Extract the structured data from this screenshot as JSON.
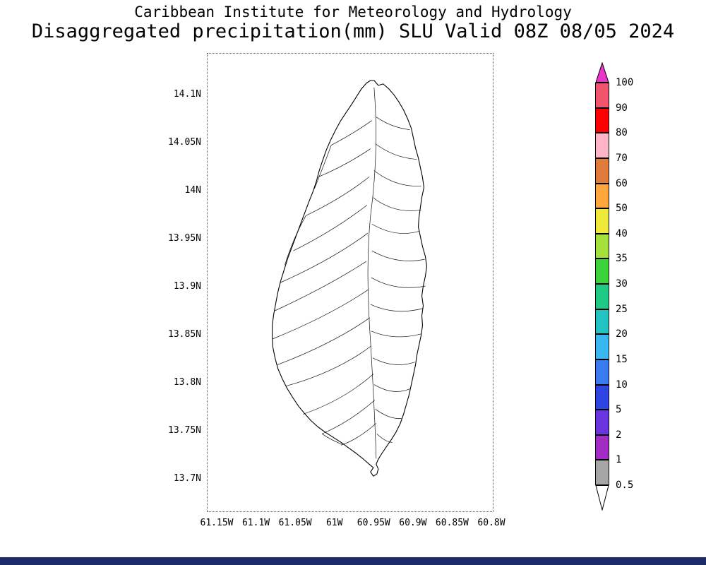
{
  "title": {
    "line1": "Caribbean Institute for Meteorology and Hydrology",
    "line2": "Disaggregated precipitation(mm) SLU Valid 08Z 08/05 2024"
  },
  "map": {
    "y_axis_labels": [
      "14.1N",
      "14.05N",
      "14N",
      "13.95N",
      "13.9N",
      "13.85N",
      "13.8N",
      "13.75N",
      "13.7N"
    ],
    "x_axis_labels": [
      "61.15W",
      "61.1W",
      "61.05W",
      "61W",
      "60.95W",
      "60.9W",
      "60.85W",
      "60.8W"
    ]
  },
  "legend": {
    "unit": "mm",
    "boundary_labels": [
      "100",
      "90",
      "80",
      "70",
      "60",
      "50",
      "40",
      "35",
      "30",
      "25",
      "20",
      "15",
      "10",
      "5",
      "2",
      "1",
      "0.5"
    ],
    "segment_colors": [
      "#f2536d",
      "#ff0000",
      "#ffb4c8",
      "#e07b3c",
      "#ffa63c",
      "#efe93a",
      "#a6e03a",
      "#3bd23b",
      "#1fca87",
      "#23c3c3",
      "#39b7f0",
      "#3a7bf0",
      "#2f45e3",
      "#6a35e0",
      "#a32cc4",
      "#a6a6a6"
    ],
    "top_arrow_color": "#e935c9",
    "bottom_arrow_color": "#ffffff"
  },
  "colors": {
    "footer_bar": "#1d2b69",
    "map_outline": "#000000"
  }
}
